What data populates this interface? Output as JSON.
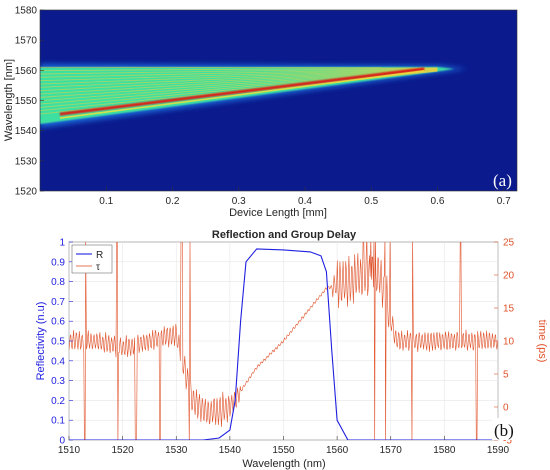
{
  "chart_data": [
    {
      "type": "heatmap",
      "panel_label": "(a)",
      "xlabel": "Device Length [mm]",
      "ylabel": "Wavelength [nm]",
      "xlim": [
        0,
        0.72
      ],
      "ylim": [
        1520,
        1580
      ],
      "xticks": [
        "0.1",
        "0.2",
        "0.3",
        "0.4",
        "0.5",
        "0.6",
        "0.7"
      ],
      "yticks": [
        "1520",
        "1530",
        "1540",
        "1550",
        "1560",
        "1570",
        "1580"
      ],
      "colors": {
        "background": "#0b1a8c",
        "low": "#1f6fe0",
        "mid": "#3ce0a0",
        "high": "#dc1e14"
      },
      "band": {
        "x": [
          0,
          0.6
        ],
        "wavelength_start": 1545.5,
        "wavelength_end": 1560.5,
        "upper_edge_start": 1562,
        "lower_edge_start": 1541,
        "fringes": 15
      }
    },
    {
      "type": "line",
      "title": "Reflection and Group Delay",
      "panel_label": "(b)",
      "xlabel": "Wavelength  (nm)",
      "ylabel": "Reflectivity  (n.u)",
      "y2label": "time  (ps)",
      "xlim": [
        1510,
        1590
      ],
      "ylim": [
        0,
        1
      ],
      "y2lim": [
        -5,
        25
      ],
      "xticks": [
        "1510",
        "1520",
        "1530",
        "1540",
        "1550",
        "1560",
        "1570",
        "1580",
        "1590"
      ],
      "yticks": [
        "0",
        "0.1",
        "0.2",
        "0.3",
        "0.4",
        "0.5",
        "0.6",
        "0.7",
        "0.8",
        "0.9",
        "1"
      ],
      "y2ticks": [
        "-5",
        "0",
        "5",
        "10",
        "15",
        "20",
        "25"
      ],
      "legend": {
        "position": "top-left",
        "entries": [
          {
            "label": "R",
            "color": "#1f1fe0"
          },
          {
            "label": "τ",
            "color": "#e0522a"
          }
        ]
      },
      "series": [
        {
          "name": "R",
          "axis": "left",
          "color": "#1f1fe0",
          "x": [
            1510,
            1535,
            1538,
            1540,
            1541,
            1542,
            1543,
            1545,
            1550,
            1555,
            1557,
            1558,
            1559,
            1560,
            1562,
            1590
          ],
          "y": [
            0,
            0,
            0.01,
            0.05,
            0.2,
            0.6,
            0.9,
            0.965,
            0.96,
            0.95,
            0.93,
            0.85,
            0.45,
            0.1,
            0,
            0
          ]
        },
        {
          "name": "τ",
          "axis": "right",
          "color": "#e0522a",
          "x": [
            1510,
            1515,
            1520,
            1525,
            1530,
            1533,
            1536,
            1540,
            1545,
            1550,
            1555,
            1558,
            1562,
            1565,
            1568,
            1571,
            1575,
            1580,
            1585,
            1590
          ],
          "y": [
            10,
            10,
            9,
            10,
            11,
            1,
            -1,
            0,
            6,
            10,
            15,
            18,
            19,
            20,
            20,
            10,
            10,
            10,
            10,
            10
          ]
        }
      ]
    }
  ]
}
